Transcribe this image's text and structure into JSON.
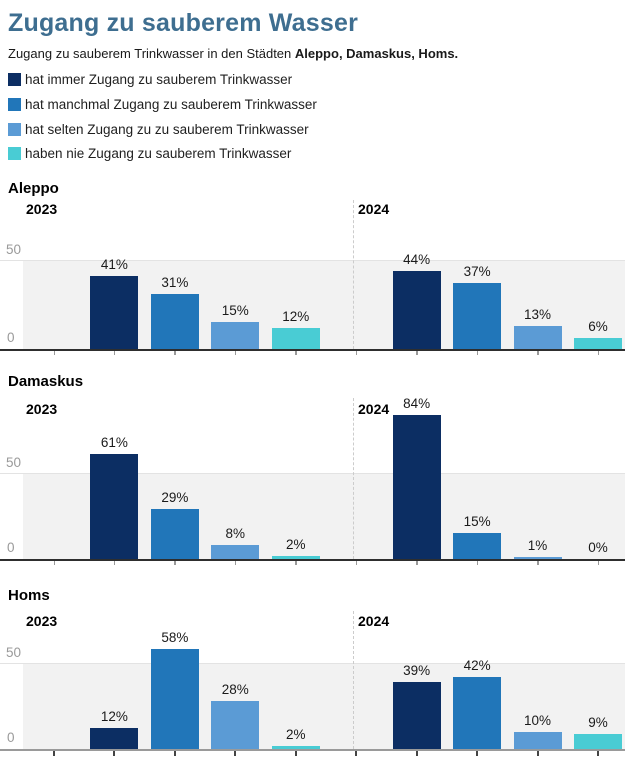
{
  "header": {
    "title": "Zugang zu sauberem Wasser",
    "subtitle_prefix": "Zugang zu sauberem Trinkwasser in den Städten ",
    "subtitle_bold": "Aleppo, Damaskus, Homs."
  },
  "legend": {
    "items": [
      {
        "label": "hat immer Zugang zu sauberem Trinkwasser",
        "color": "#0c2e63"
      },
      {
        "label": "hat manchmal Zugang zu sauberem Trinkwasser",
        "color": "#2176b9"
      },
      {
        "label": "hat selten Zugang zu zu sauberem Trinkwasser",
        "color": "#5b9bd5"
      },
      {
        "label": "haben nie Zugang zu sauberem Trinkwasser",
        "color": "#49ccd4"
      }
    ]
  },
  "chart_data": {
    "type": "bar",
    "unit": "%",
    "title": "Zugang zu sauberem Wasser",
    "subtitle": "Zugang zu sauberem Trinkwasser in den Städten Aleppo, Damaskus, Homs.",
    "groups": [
      "2023",
      "2024"
    ],
    "categories": [
      "hat immer Zugang zu sauberem Trinkwasser",
      "hat manchmal Zugang zu sauberem Trinkwasser",
      "hat selten Zugang zu zu sauberem Trinkwasser",
      "haben nie Zugang zu sauberem Trinkwasser"
    ],
    "series_colors": [
      "#0c2e63",
      "#2176b9",
      "#5b9bd5",
      "#49ccd4"
    ],
    "y_axis": {
      "tick_values": [
        50,
        0
      ],
      "tick_labels": [
        "50",
        "0"
      ],
      "shaded_range": [
        0,
        50
      ]
    },
    "cities": [
      {
        "name": "Aleppo",
        "values_2023": [
          41,
          31,
          15,
          12
        ],
        "values_2024": [
          44,
          37,
          13,
          6
        ]
      },
      {
        "name": "Damaskus",
        "values_2023": [
          61,
          29,
          8,
          2
        ],
        "values_2024": [
          84,
          15,
          1,
          0
        ]
      },
      {
        "name": "Homs",
        "values_2023": [
          12,
          58,
          28,
          2
        ],
        "values_2024": [
          39,
          42,
          10,
          9
        ]
      }
    ]
  },
  "theme": {
    "title_color": "#3e6e90",
    "band": "#f2f2f2",
    "grid": "#e3e3e3",
    "axis": "#2e2e2e",
    "axis_light": "#9a9a9a",
    "tick": "#999999",
    "tick_dark": "#444444",
    "dash": "#cccccc",
    "text": "#1a1a1a",
    "muted": "#9a9a9a"
  }
}
